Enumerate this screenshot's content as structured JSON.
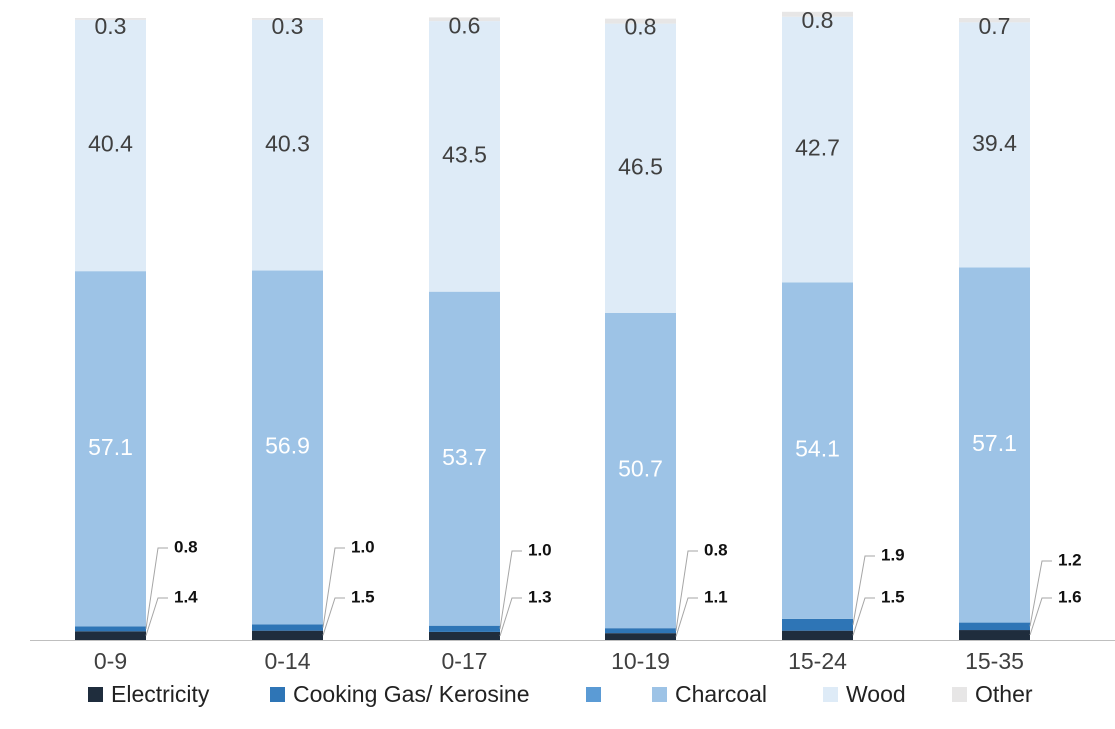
{
  "chart_data": {
    "type": "bar",
    "stacked": true,
    "categories": [
      "0-9",
      "0-14",
      "0-17",
      "10-19",
      "15-24",
      "15-35"
    ],
    "series": [
      {
        "name": "Electricity",
        "color": "#1f2d3d",
        "values": [
          1.4,
          1.5,
          1.3,
          1.1,
          1.5,
          1.6
        ],
        "labels": [
          "1.4",
          "1.5",
          "1.3",
          "1.1",
          "1.5",
          "1.6"
        ]
      },
      {
        "name": "Cooking Gas/ Kerosine",
        "color": "#2e75b6",
        "values": [
          0.8,
          1.0,
          1.0,
          0.8,
          1.9,
          1.2
        ],
        "labels": [
          "0.8",
          "1.0",
          "1.0",
          "0.8",
          "1.9",
          "1.2"
        ]
      },
      {
        "name": "",
        "color": "#5b9bd5",
        "values": [
          0,
          0,
          0,
          0,
          0,
          0
        ],
        "labels": [
          "",
          "",
          "",
          "",
          "",
          ""
        ]
      },
      {
        "name": "Charcoal",
        "color": "#9dc3e6",
        "values": [
          57.1,
          56.9,
          53.7,
          50.7,
          54.1,
          57.1
        ],
        "labels": [
          "57.1",
          "56.9",
          "53.7",
          "50.7",
          "54.1",
          "57.1"
        ]
      },
      {
        "name": "Wood",
        "color": "#deebf7",
        "values": [
          40.4,
          40.3,
          43.5,
          46.5,
          42.7,
          39.4
        ],
        "labels": [
          "40.4",
          "40.3",
          "43.5",
          "46.5",
          "42.7",
          "39.4"
        ]
      },
      {
        "name": "Other",
        "color": "#e7e6e6",
        "values": [
          0.3,
          0.3,
          0.6,
          0.8,
          0.8,
          0.7
        ],
        "labels": [
          "0.3",
          "0.3",
          "0.6",
          "0.8",
          "0.8",
          "0.7"
        ]
      }
    ],
    "ylim": [
      0,
      100
    ],
    "grid": false,
    "legend_position": "bottom",
    "title": "",
    "xlabel": "",
    "ylabel": ""
  }
}
